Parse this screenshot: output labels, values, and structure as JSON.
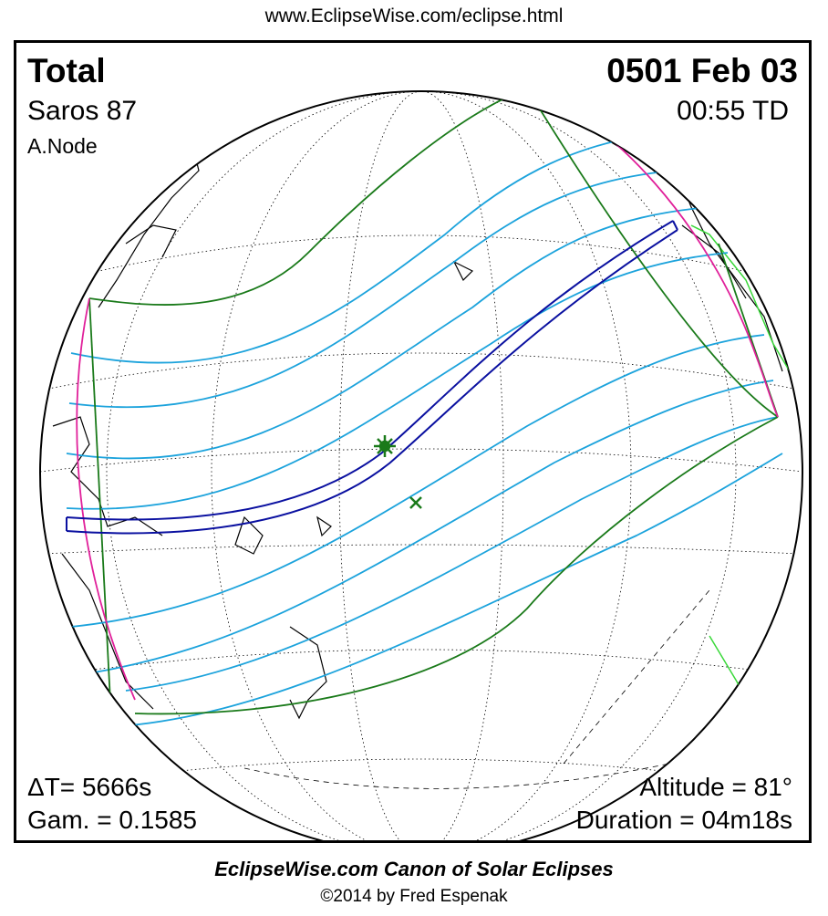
{
  "header_url": "www.EclipseWise.com/eclipse.html",
  "eclipse": {
    "type": "Total",
    "date": "0501 Feb 03",
    "saros": "Saros  87",
    "time": "00:55 TD",
    "node": "A.Node",
    "delta_t": "ΔT=   5666s",
    "gamma": "Gam. = 0.1585",
    "altitude": "Altitude = 81°",
    "duration": "Duration = 04m18s"
  },
  "footer": {
    "title": "EclipseWise.com Canon of Solar Eclipses",
    "copyright": "©2014 by Fred Espenak"
  },
  "colors": {
    "penumbra_limits": "#1a7a1a",
    "hourly_lines": "#1ca3dc",
    "totality_path": "#0a10a0",
    "rise_set_curves": "#e0209a",
    "coastlines": "#000000",
    "land_highlight": "#39d839"
  },
  "markers": {
    "greatest_eclipse": "star-marker",
    "sub_solar_point": "x-marker"
  }
}
